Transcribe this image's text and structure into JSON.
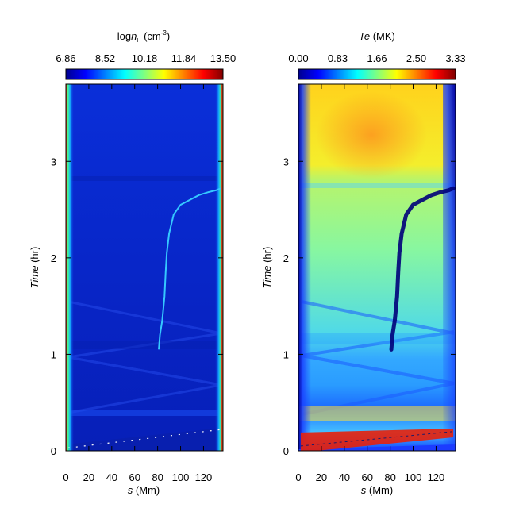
{
  "chart_data": [
    {
      "type": "heatmap",
      "colorbar": {
        "title_parts": [
          "log",
          "n",
          "H",
          " (cm",
          "-3",
          ")"
        ],
        "ticks": [
          "6.86",
          "8.52",
          "10.18",
          "11.84",
          "13.50"
        ],
        "range": [
          6.86,
          13.5
        ],
        "colormap": "jet"
      },
      "xlabel_parts": [
        "s",
        " (Mm)"
      ],
      "ylabel_parts": [
        "Time",
        " (hr)"
      ],
      "x_ticks": [
        "0",
        "20",
        "40",
        "60",
        "80",
        "100",
        "120"
      ],
      "y_ticks": [
        "0",
        "1",
        "2",
        "3"
      ],
      "xlim": [
        0,
        137
      ],
      "ylim": [
        0,
        3.8
      ],
      "features": {
        "condensation_track": {
          "s": [
            81,
            82,
            84,
            86,
            87,
            88,
            90,
            94,
            100,
            108,
            116,
            124,
            131,
            135
          ],
          "t": [
            1.05,
            1.2,
            1.35,
            1.6,
            1.85,
            2.05,
            2.25,
            2.45,
            2.55,
            2.6,
            2.65,
            2.68,
            2.7,
            2.72
          ],
          "color": "#33c4ff"
        },
        "initial_front": {
          "s_start": 2,
          "s_end": 135,
          "t_start": 0.03,
          "t_end": 0.22
        },
        "background_value": 8.0,
        "footpoint_value": 13.5
      }
    },
    {
      "type": "heatmap",
      "colorbar": {
        "title_parts": [
          "Te",
          " (MK)"
        ],
        "ticks": [
          "0.00",
          "0.83",
          "1.66",
          "2.50",
          "3.33"
        ],
        "range": [
          0,
          3.33
        ],
        "colormap": "jet"
      },
      "xlabel_parts": [
        "s",
        " (Mm)"
      ],
      "ylabel_parts": [
        "Time",
        " (hr)"
      ],
      "x_ticks": [
        "0",
        "20",
        "40",
        "60",
        "80",
        "100",
        "120"
      ],
      "y_ticks": [
        "0",
        "1",
        "2",
        "3"
      ],
      "xlim": [
        0,
        137
      ],
      "ylim": [
        0,
        3.8
      ],
      "features": {
        "cool_track": {
          "s": [
            81,
            82,
            84,
            86,
            87,
            88,
            90,
            94,
            100,
            108,
            116,
            124,
            131,
            135
          ],
          "t": [
            1.05,
            1.2,
            1.35,
            1.6,
            1.85,
            2.05,
            2.25,
            2.45,
            2.55,
            2.6,
            2.65,
            2.68,
            2.7,
            2.72
          ],
          "color": "#00007f"
        },
        "hot_front": {
          "s_start": 2,
          "s_end": 135,
          "t_start": 0.05,
          "t_end": 0.2
        },
        "late_hot_phase_start": 2.8,
        "peak_temperature": 2.6
      }
    }
  ]
}
